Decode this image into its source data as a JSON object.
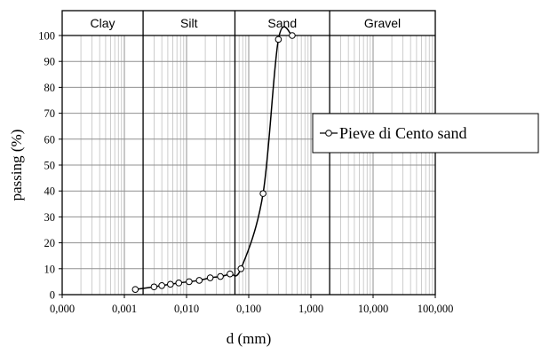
{
  "chart_data": {
    "type": "scatter",
    "xlabel": "d (mm)",
    "ylabel": "passing  (%)",
    "x_scale": "log",
    "xlim": [
      0.0001,
      100
    ],
    "ylim": [
      0,
      100
    ],
    "grid": true,
    "legend_position": "right",
    "x_tick_labels": [
      "0,000",
      "0,001",
      "0,010",
      "0,100",
      "1,000",
      "10,000",
      "100,000"
    ],
    "x_tick_values": [
      0.0001,
      0.001,
      0.01,
      0.1,
      1,
      10,
      100
    ],
    "y_tick_labels": [
      "0",
      "10",
      "20",
      "30",
      "40",
      "50",
      "60",
      "70",
      "80",
      "90",
      "100"
    ],
    "y_tick_values": [
      0,
      10,
      20,
      30,
      40,
      50,
      60,
      70,
      80,
      90,
      100
    ],
    "bands": [
      {
        "label": "Clay",
        "from": 0.0001,
        "to": 0.002
      },
      {
        "label": "Silt",
        "from": 0.002,
        "to": 0.06
      },
      {
        "label": "Sand",
        "from": 0.06,
        "to": 2
      },
      {
        "label": "Gravel",
        "from": 2,
        "to": 100
      }
    ],
    "series": [
      {
        "name": "Pieve di Cento sand",
        "color": "#000000",
        "marker": "open-circle",
        "x": [
          0.0015,
          0.003,
          0.004,
          0.0055,
          0.0075,
          0.011,
          0.016,
          0.024,
          0.035,
          0.05,
          0.075,
          0.17,
          0.3,
          0.5
        ],
        "y": [
          2,
          3,
          3.5,
          4,
          4.5,
          5,
          5.5,
          6.5,
          7,
          8,
          10,
          39,
          98.5,
          100
        ]
      }
    ]
  }
}
